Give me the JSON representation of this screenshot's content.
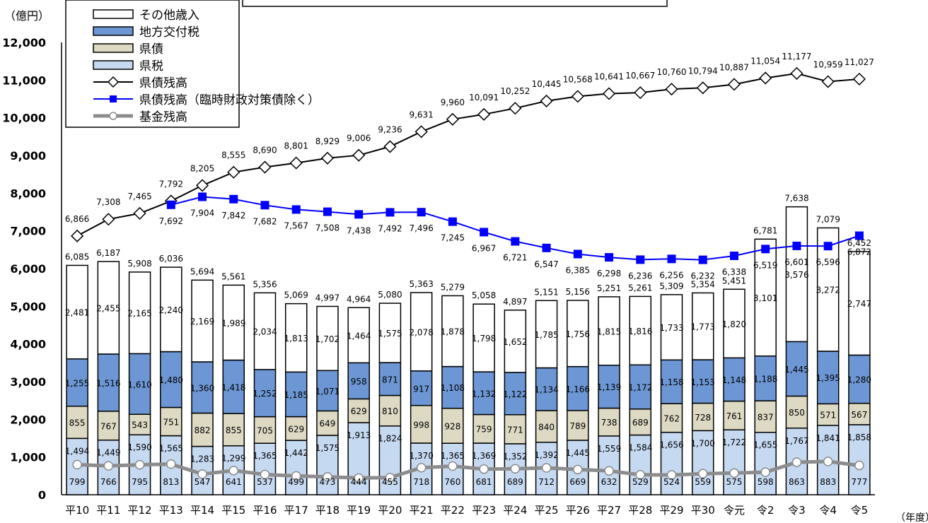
{
  "chart_data": {
    "type": "bar",
    "stacked": true,
    "y_unit": "（億円）",
    "x_unit": "（年度）",
    "ylim": [
      0,
      12000
    ],
    "y_ticks": [
      "0",
      "1,000",
      "2,000",
      "3,000",
      "4,000",
      "5,000",
      "6,000",
      "7,000",
      "8,000",
      "9,000",
      "10,000",
      "11,000",
      "12,000"
    ],
    "categories": [
      "平10",
      "平11",
      "平12",
      "平13",
      "平14",
      "平15",
      "平16",
      "平17",
      "平18",
      "平19",
      "平20",
      "平21",
      "平22",
      "平23",
      "平24",
      "平25",
      "平26",
      "平27",
      "平28",
      "平29",
      "平30",
      "令元",
      "令2",
      "令3",
      "令4",
      "令5"
    ],
    "series": [
      {
        "name": "県税",
        "color": "#c5d9f1",
        "values": [
          1494,
          1449,
          1590,
          1565,
          1283,
          1299,
          1365,
          1442,
          1575,
          1913,
          1824,
          1370,
          1365,
          1369,
          1352,
          1392,
          1445,
          1559,
          1584,
          1656,
          1700,
          1722,
          1655,
          1767,
          1841,
          1858
        ]
      },
      {
        "name": "県債",
        "color": "#ddd9c3",
        "values": [
          855,
          767,
          543,
          751,
          882,
          855,
          705,
          629,
          649,
          629,
          810,
          998,
          928,
          759,
          771,
          840,
          789,
          738,
          689,
          762,
          728,
          761,
          837,
          850,
          571,
          567
        ]
      },
      {
        "name": "地方交付税",
        "color": "#6c97d4",
        "values": [
          1255,
          1516,
          1610,
          1480,
          1360,
          1418,
          1252,
          1185,
          1071,
          958,
          871,
          917,
          1108,
          1132,
          1122,
          1134,
          1166,
          1139,
          1172,
          1158,
          1153,
          1148,
          1188,
          1445,
          1395,
          1280
        ]
      },
      {
        "name": "その他歳入",
        "color": "#ffffff",
        "values": [
          2481,
          2455,
          2165,
          2240,
          2169,
          1989,
          2034,
          1813,
          1702,
          1464,
          1575,
          2078,
          1878,
          1798,
          1652,
          1785,
          1756,
          1815,
          1816,
          1733,
          1773,
          1820,
          3101,
          3576,
          3272,
          2747
        ]
      }
    ],
    "totals": [
      6085,
      6187,
      5908,
      6036,
      5694,
      5561,
      5356,
      5069,
      4997,
      4964,
      5080,
      5363,
      5279,
      5058,
      4897,
      5151,
      5156,
      5251,
      5261,
      5309,
      5354,
      5451,
      6781,
      7638,
      7079,
      6452
    ],
    "lines": [
      {
        "name": "県債残高",
        "color": "#000000",
        "marker": "diamond",
        "values": [
          6866,
          7308,
          7465,
          7792,
          8205,
          8555,
          8690,
          8801,
          8929,
          9006,
          9236,
          9631,
          9960,
          10091,
          10252,
          10445,
          10568,
          10641,
          10667,
          10760,
          10794,
          10887,
          11054,
          11177,
          10959,
          11027
        ]
      },
      {
        "name": "県債残高（臨時財政対策債除く）",
        "color": "#0000ff",
        "marker": "square",
        "values": [
          null,
          null,
          null,
          7692,
          7904,
          7842,
          7682,
          7567,
          7508,
          7438,
          7492,
          7496,
          7245,
          6967,
          6721,
          6547,
          6385,
          6298,
          6236,
          6256,
          6232,
          6338,
          6519,
          6601,
          6596,
          6872
        ]
      },
      {
        "name": "基金残高",
        "color": "#8c8c8c",
        "marker": "circle",
        "values": [
          799,
          766,
          795,
          813,
          547,
          641,
          537,
          499,
          473,
          444,
          455,
          718,
          760,
          681,
          689,
          712,
          669,
          632,
          529,
          524,
          559,
          575,
          598,
          863,
          883,
          777
        ]
      }
    ]
  }
}
